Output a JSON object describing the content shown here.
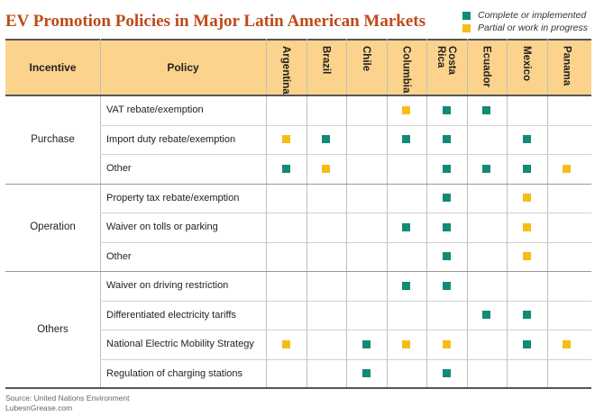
{
  "title": "EV Promotion Policies in Major Latin American Markets",
  "legend": {
    "complete": {
      "label": "Complete or implemented",
      "color": "#138a76"
    },
    "partial": {
      "label": "Partial or work in progress",
      "color": "#f7bd16"
    }
  },
  "header": {
    "incentive": "Incentive",
    "policy": "Policy"
  },
  "countries": [
    "Argentina",
    "Brazil",
    "Chile",
    "Columbia",
    "Costa\nRica",
    "Ecuador",
    "Mexico",
    "Panama"
  ],
  "groups": [
    {
      "name": "Purchase",
      "rows": [
        {
          "policy": "VAT rebate/exemption",
          "marks": [
            "",
            "",
            "",
            "partial",
            "complete",
            "complete",
            "",
            ""
          ]
        },
        {
          "policy": "Import duty rebate/exemption",
          "marks": [
            "partial",
            "complete",
            "",
            "complete",
            "complete",
            "",
            "complete",
            ""
          ]
        },
        {
          "policy": "Other",
          "marks": [
            "complete",
            "partial",
            "",
            "",
            "complete",
            "complete",
            "complete",
            "partial"
          ]
        }
      ]
    },
    {
      "name": "Operation",
      "rows": [
        {
          "policy": "Property tax rebate/exemption",
          "marks": [
            "",
            "",
            "",
            "",
            "complete",
            "",
            "partial",
            ""
          ]
        },
        {
          "policy": "Waiver on tolls or parking",
          "marks": [
            "",
            "",
            "",
            "complete",
            "complete",
            "",
            "partial",
            ""
          ]
        },
        {
          "policy": "Other",
          "marks": [
            "",
            "",
            "",
            "",
            "complete",
            "",
            "partial",
            ""
          ]
        }
      ]
    },
    {
      "name": "Others",
      "rows": [
        {
          "policy": "Waiver on driving restriction",
          "marks": [
            "",
            "",
            "",
            "complete",
            "complete",
            "",
            "",
            ""
          ]
        },
        {
          "policy": "Differentiated electricity tariffs",
          "marks": [
            "",
            "",
            "",
            "",
            "",
            "complete",
            "complete",
            ""
          ]
        },
        {
          "policy": "National Electric Mobility Strategy",
          "marks": [
            "partial",
            "",
            "complete",
            "partial",
            "partial",
            "",
            "complete",
            "partial"
          ]
        },
        {
          "policy": "Regulation of charging stations",
          "marks": [
            "",
            "",
            "complete",
            "",
            "complete",
            "",
            "",
            ""
          ]
        }
      ]
    }
  ],
  "source": {
    "line1": "Source: United Nations Environment",
    "line2": "LubesnGrease.com"
  }
}
